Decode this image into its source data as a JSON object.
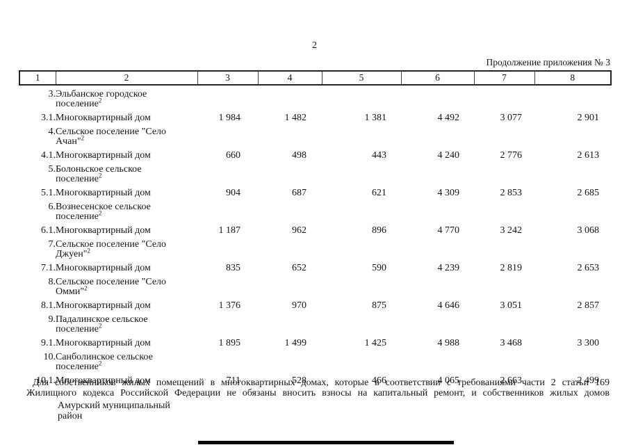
{
  "page": {
    "number": "2",
    "continuation_note": "Продолжение приложения № 3"
  },
  "table": {
    "header": [
      "1",
      "2",
      "3",
      "4",
      "5",
      "6",
      "7",
      "8"
    ],
    "rows": [
      {
        "num": "3.",
        "name": "Эльбанское городское\nпоселение",
        "sup": "2",
        "values": []
      },
      {
        "num": "3.1.",
        "name": "Многоквартирный дом",
        "sup": "",
        "values": [
          "1 984",
          "1 482",
          "1 381",
          "4 492",
          "3 077",
          "2 901"
        ]
      },
      {
        "num": "4.",
        "name": "Сельское поселение \"Село\nАчан\"",
        "sup": "2",
        "values": []
      },
      {
        "num": "4.1.",
        "name": "Многоквартирный дом",
        "sup": "",
        "values": [
          "660",
          "498",
          "443",
          "4 240",
          "2 776",
          "2 613"
        ]
      },
      {
        "num": "5.",
        "name": "Болоньское сельское\nпоселение",
        "sup": "2",
        "values": []
      },
      {
        "num": "5.1.",
        "name": "Многоквартирный дом",
        "sup": "",
        "values": [
          "904",
          "687",
          "621",
          "4 309",
          "2 853",
          "2 685"
        ]
      },
      {
        "num": "6.",
        "name": "Вознесенское сельское\nпоселение",
        "sup": "2",
        "values": []
      },
      {
        "num": "6.1.",
        "name": "Многоквартирный дом",
        "sup": "",
        "values": [
          "1 187",
          "962",
          "896",
          "4 770",
          "3 242",
          "3 068"
        ]
      },
      {
        "num": "7.",
        "name": "Сельское поселение \"Село\nДжуен\"",
        "sup": "2",
        "values": []
      },
      {
        "num": "7.1.",
        "name": "Многоквартирный дом",
        "sup": "",
        "values": [
          "835",
          "652",
          "590",
          "4 239",
          "2 819",
          "2 653"
        ]
      },
      {
        "num": "8.",
        "name": "Сельское поселение \"Село\nОмми\"",
        "sup": "2",
        "values": []
      },
      {
        "num": "8.1.",
        "name": "Многоквартирный дом",
        "sup": "",
        "values": [
          "1 376",
          "970",
          "875",
          "4 646",
          "3 051",
          "2 857"
        ]
      },
      {
        "num": "9.",
        "name": "Падалинское сельское\nпоселение",
        "sup": "2",
        "values": []
      },
      {
        "num": "9.1.",
        "name": "Многоквартирный дом",
        "sup": "",
        "values": [
          "1 895",
          "1 499",
          "1 425",
          "4 988",
          "3 468",
          "3 300"
        ]
      },
      {
        "num": "10.",
        "name": "Санболинское сельское\nпоселение",
        "sup": "2",
        "values": []
      },
      {
        "num": "10.1.",
        "name": "Многоквартирный дом",
        "sup": "",
        "values": [
          "711",
          "528",
          "466",
          "4 065",
          "2 663",
          "2 499"
        ]
      }
    ]
  },
  "footnote": {
    "line1": "Для собственников жилых помещений в многоквартирных домах, которые в соответствии с требованиями части 2 статьи 169",
    "line2": "Жилищного кодекса Российской Федерации не обязаны вносить взносы на капитальный ремонт, и собственников жилых домов"
  },
  "region_label": "Амурский муниципальный\nрайон"
}
